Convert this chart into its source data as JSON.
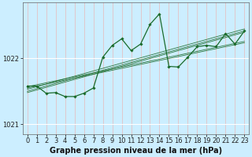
{
  "title": "Graphe pression niveau de la mer (hPa)",
  "background_color": "#cceeff",
  "grid_color_v": "#e8b8b8",
  "grid_color_h": "#ffffff",
  "line_color": "#1a6b2a",
  "xlim": [
    -0.5,
    23.5
  ],
  "ylim": [
    1020.85,
    1022.85
  ],
  "yticks": [
    1021,
    1022
  ],
  "xticks": [
    0,
    1,
    2,
    3,
    4,
    5,
    6,
    7,
    8,
    9,
    10,
    11,
    12,
    13,
    14,
    15,
    16,
    17,
    18,
    19,
    20,
    21,
    22,
    23
  ],
  "trend_series": [
    [
      1021.57,
      1021.6,
      1021.63,
      1021.66,
      1021.69,
      1021.72,
      1021.75,
      1021.78,
      1021.81,
      1021.84,
      1021.87,
      1021.9,
      1021.93,
      1021.96,
      1021.99,
      1022.02,
      1022.05,
      1022.08,
      1022.11,
      1022.14,
      1022.17,
      1022.2,
      1022.23,
      1022.26
    ],
    [
      1021.5,
      1021.54,
      1021.58,
      1021.62,
      1021.66,
      1021.7,
      1021.74,
      1021.78,
      1021.82,
      1021.86,
      1021.9,
      1021.94,
      1021.98,
      1022.02,
      1022.06,
      1022.1,
      1022.14,
      1022.18,
      1022.22,
      1022.26,
      1022.3,
      1022.34,
      1022.38,
      1022.42
    ],
    [
      1021.53,
      1021.57,
      1021.61,
      1021.65,
      1021.69,
      1021.73,
      1021.77,
      1021.81,
      1021.85,
      1021.89,
      1021.93,
      1021.97,
      1022.01,
      1022.05,
      1022.09,
      1022.13,
      1022.17,
      1022.21,
      1022.25,
      1022.29,
      1022.33,
      1022.37,
      1022.41,
      1022.45
    ],
    [
      1021.55,
      1021.58,
      1021.61,
      1021.64,
      1021.67,
      1021.7,
      1021.73,
      1021.76,
      1021.79,
      1021.82,
      1021.85,
      1021.88,
      1021.91,
      1021.94,
      1021.97,
      1022.0,
      1022.03,
      1022.06,
      1022.09,
      1022.12,
      1022.15,
      1022.18,
      1022.21,
      1022.24
    ],
    [
      1021.48,
      1021.52,
      1021.56,
      1021.6,
      1021.64,
      1021.68,
      1021.72,
      1021.76,
      1021.8,
      1021.84,
      1021.88,
      1021.92,
      1021.96,
      1022.0,
      1022.04,
      1022.08,
      1022.12,
      1022.16,
      1022.2,
      1022.24,
      1022.28,
      1022.32,
      1022.36,
      1022.4
    ]
  ],
  "main_series": [
    1021.58,
    1021.58,
    1021.47,
    1021.48,
    1021.42,
    1021.42,
    1021.47,
    1021.55,
    1022.02,
    1022.2,
    1022.3,
    1022.12,
    1022.22,
    1022.52,
    1022.68,
    1021.88,
    1021.87,
    1022.02,
    1022.18,
    1022.2,
    1022.18,
    1022.38,
    1022.22,
    1022.42
  ],
  "fontsize_title": 7.0,
  "fontsize_ticks": 6.0
}
